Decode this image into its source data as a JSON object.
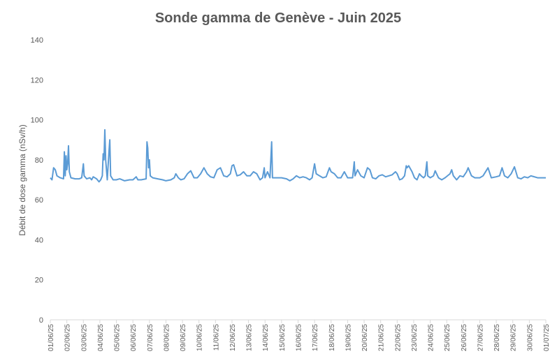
{
  "chart_data": {
    "type": "line",
    "title": "Sonde gamma de Genève - Juin 2025",
    "y_label": "Débit de dose gamma (nSv/h)",
    "xlim": [
      0,
      30
    ],
    "ylim": [
      0,
      140
    ],
    "yticks": [
      0,
      20,
      40,
      60,
      80,
      100,
      120,
      140
    ],
    "xticks": [
      {
        "value": 0,
        "label": "01/06/25"
      },
      {
        "value": 1,
        "label": "02/06/25"
      },
      {
        "value": 2,
        "label": "03/06/25"
      },
      {
        "value": 3,
        "label": "04/06/25"
      },
      {
        "value": 4,
        "label": "05/06/25"
      },
      {
        "value": 5,
        "label": "06/06/25"
      },
      {
        "value": 6,
        "label": "07/06/25"
      },
      {
        "value": 7,
        "label": "08/06/25"
      },
      {
        "value": 8,
        "label": "09/06/25"
      },
      {
        "value": 9,
        "label": "10/06/25"
      },
      {
        "value": 10,
        "label": "11/06/25"
      },
      {
        "value": 11,
        "label": "12/06/25"
      },
      {
        "value": 12,
        "label": "13/06/25"
      },
      {
        "value": 13,
        "label": "14/06/25"
      },
      {
        "value": 14,
        "label": "15/06/25"
      },
      {
        "value": 15,
        "label": "16/06/25"
      },
      {
        "value": 16,
        "label": "17/06/25"
      },
      {
        "value": 17,
        "label": "18/06/25"
      },
      {
        "value": 18,
        "label": "19/06/25"
      },
      {
        "value": 19,
        "label": "20/06/25"
      },
      {
        "value": 20,
        "label": "21/06/25"
      },
      {
        "value": 21,
        "label": "22/06/25"
      },
      {
        "value": 22,
        "label": "23/06/25"
      },
      {
        "value": 23,
        "label": "24/06/25"
      },
      {
        "value": 24,
        "label": "25/06/25"
      },
      {
        "value": 25,
        "label": "26/06/25"
      },
      {
        "value": 26,
        "label": "27/06/25"
      },
      {
        "value": 27,
        "label": "28/06/25"
      },
      {
        "value": 28,
        "label": "29/06/25"
      },
      {
        "value": 29,
        "label": "30/06/25"
      },
      {
        "value": 30,
        "label": "01/07/25"
      }
    ],
    "grid": false,
    "series": [
      {
        "color": "#5b9bd5",
        "x": [
          0,
          0.1,
          0.2,
          0.3,
          0.4,
          0.6,
          0.8,
          0.85,
          0.9,
          0.95,
          1.0,
          1.05,
          1.1,
          1.15,
          1.25,
          1.5,
          1.75,
          1.9,
          2.0,
          2.05,
          2.2,
          2.4,
          2.5,
          2.6,
          2.8,
          2.95,
          3.05,
          3.15,
          3.2,
          3.25,
          3.3,
          3.35,
          3.45,
          3.55,
          3.6,
          3.65,
          3.8,
          4.0,
          4.2,
          4.5,
          4.8,
          5.0,
          5.2,
          5.3,
          5.5,
          5.8,
          5.85,
          5.9,
          5.95,
          6.0,
          6.05,
          6.2,
          6.5,
          6.8,
          7.0,
          7.3,
          7.5,
          7.6,
          7.75,
          7.9,
          8.1,
          8.3,
          8.5,
          8.7,
          8.9,
          9.1,
          9.3,
          9.5,
          9.7,
          9.9,
          10.1,
          10.3,
          10.5,
          10.7,
          10.9,
          11.0,
          11.1,
          11.3,
          11.5,
          11.7,
          11.9,
          12.1,
          12.3,
          12.5,
          12.7,
          12.85,
          12.95,
          13.0,
          13.15,
          13.3,
          13.4,
          13.45,
          13.7,
          14.0,
          14.3,
          14.5,
          14.7,
          14.9,
          15.1,
          15.3,
          15.5,
          15.7,
          15.85,
          16.0,
          16.1,
          16.3,
          16.5,
          16.7,
          16.9,
          17.0,
          17.2,
          17.4,
          17.6,
          17.8,
          18.0,
          18.2,
          18.3,
          18.4,
          18.45,
          18.6,
          18.8,
          19.0,
          19.2,
          19.35,
          19.5,
          19.7,
          19.9,
          20.1,
          20.3,
          20.5,
          20.7,
          20.9,
          21.0,
          21.15,
          21.3,
          21.45,
          21.55,
          21.6,
          21.7,
          21.9,
          22.05,
          22.2,
          22.35,
          22.45,
          22.6,
          22.7,
          22.8,
          22.85,
          23.0,
          23.2,
          23.3,
          23.5,
          23.7,
          23.9,
          24.2,
          24.3,
          24.4,
          24.6,
          24.8,
          25.0,
          25.2,
          25.3,
          25.5,
          25.7,
          26.0,
          26.2,
          26.5,
          26.7,
          27.0,
          27.2,
          27.35,
          27.5,
          27.7,
          27.9,
          28.1,
          28.3,
          28.5,
          28.7,
          28.9,
          29.1,
          29.5,
          30
        ],
        "values": [
          71,
          70,
          76,
          75,
          72,
          71,
          70.5,
          84,
          72,
          82,
          75,
          78,
          87,
          74,
          71,
          70.5,
          70.5,
          71,
          78,
          72,
          70.5,
          71,
          70,
          71.5,
          70.5,
          69,
          70,
          72,
          83,
          80,
          95,
          80,
          70,
          84,
          90,
          72,
          70,
          70,
          70.5,
          69.5,
          70,
          70,
          71.5,
          70,
          70,
          70.5,
          89,
          86,
          76,
          80,
          72,
          71,
          70.5,
          70,
          69.5,
          70,
          71,
          73,
          71,
          70,
          70.5,
          73,
          74.5,
          71,
          71,
          73,
          76,
          73,
          71.5,
          71,
          75,
          76,
          72,
          71.5,
          73,
          77,
          77.5,
          72,
          72.5,
          74,
          72,
          72,
          74,
          73,
          70,
          71,
          76,
          71,
          74,
          71,
          89,
          71,
          71,
          71,
          70.5,
          69.5,
          70.5,
          72,
          71,
          71.5,
          71,
          70,
          71,
          78,
          73,
          72,
          71,
          71.5,
          76,
          74,
          73,
          71,
          71,
          74,
          71,
          71,
          71,
          79,
          72,
          75,
          72,
          71,
          76,
          75,
          71,
          70.5,
          72,
          72.5,
          71.5,
          72,
          72.5,
          74,
          73,
          70,
          70.5,
          72,
          77,
          76,
          77,
          74,
          71,
          70,
          73,
          72,
          71,
          72,
          79,
          72,
          71,
          72,
          74.5,
          71,
          70,
          71,
          73,
          75,
          72,
          70,
          72,
          71.5,
          74,
          76,
          72,
          71,
          71,
          72,
          76,
          71,
          71.5,
          72,
          76,
          72,
          71,
          73,
          76.5,
          71,
          70.5,
          71.5,
          71,
          72,
          71,
          71
        ]
      }
    ]
  }
}
